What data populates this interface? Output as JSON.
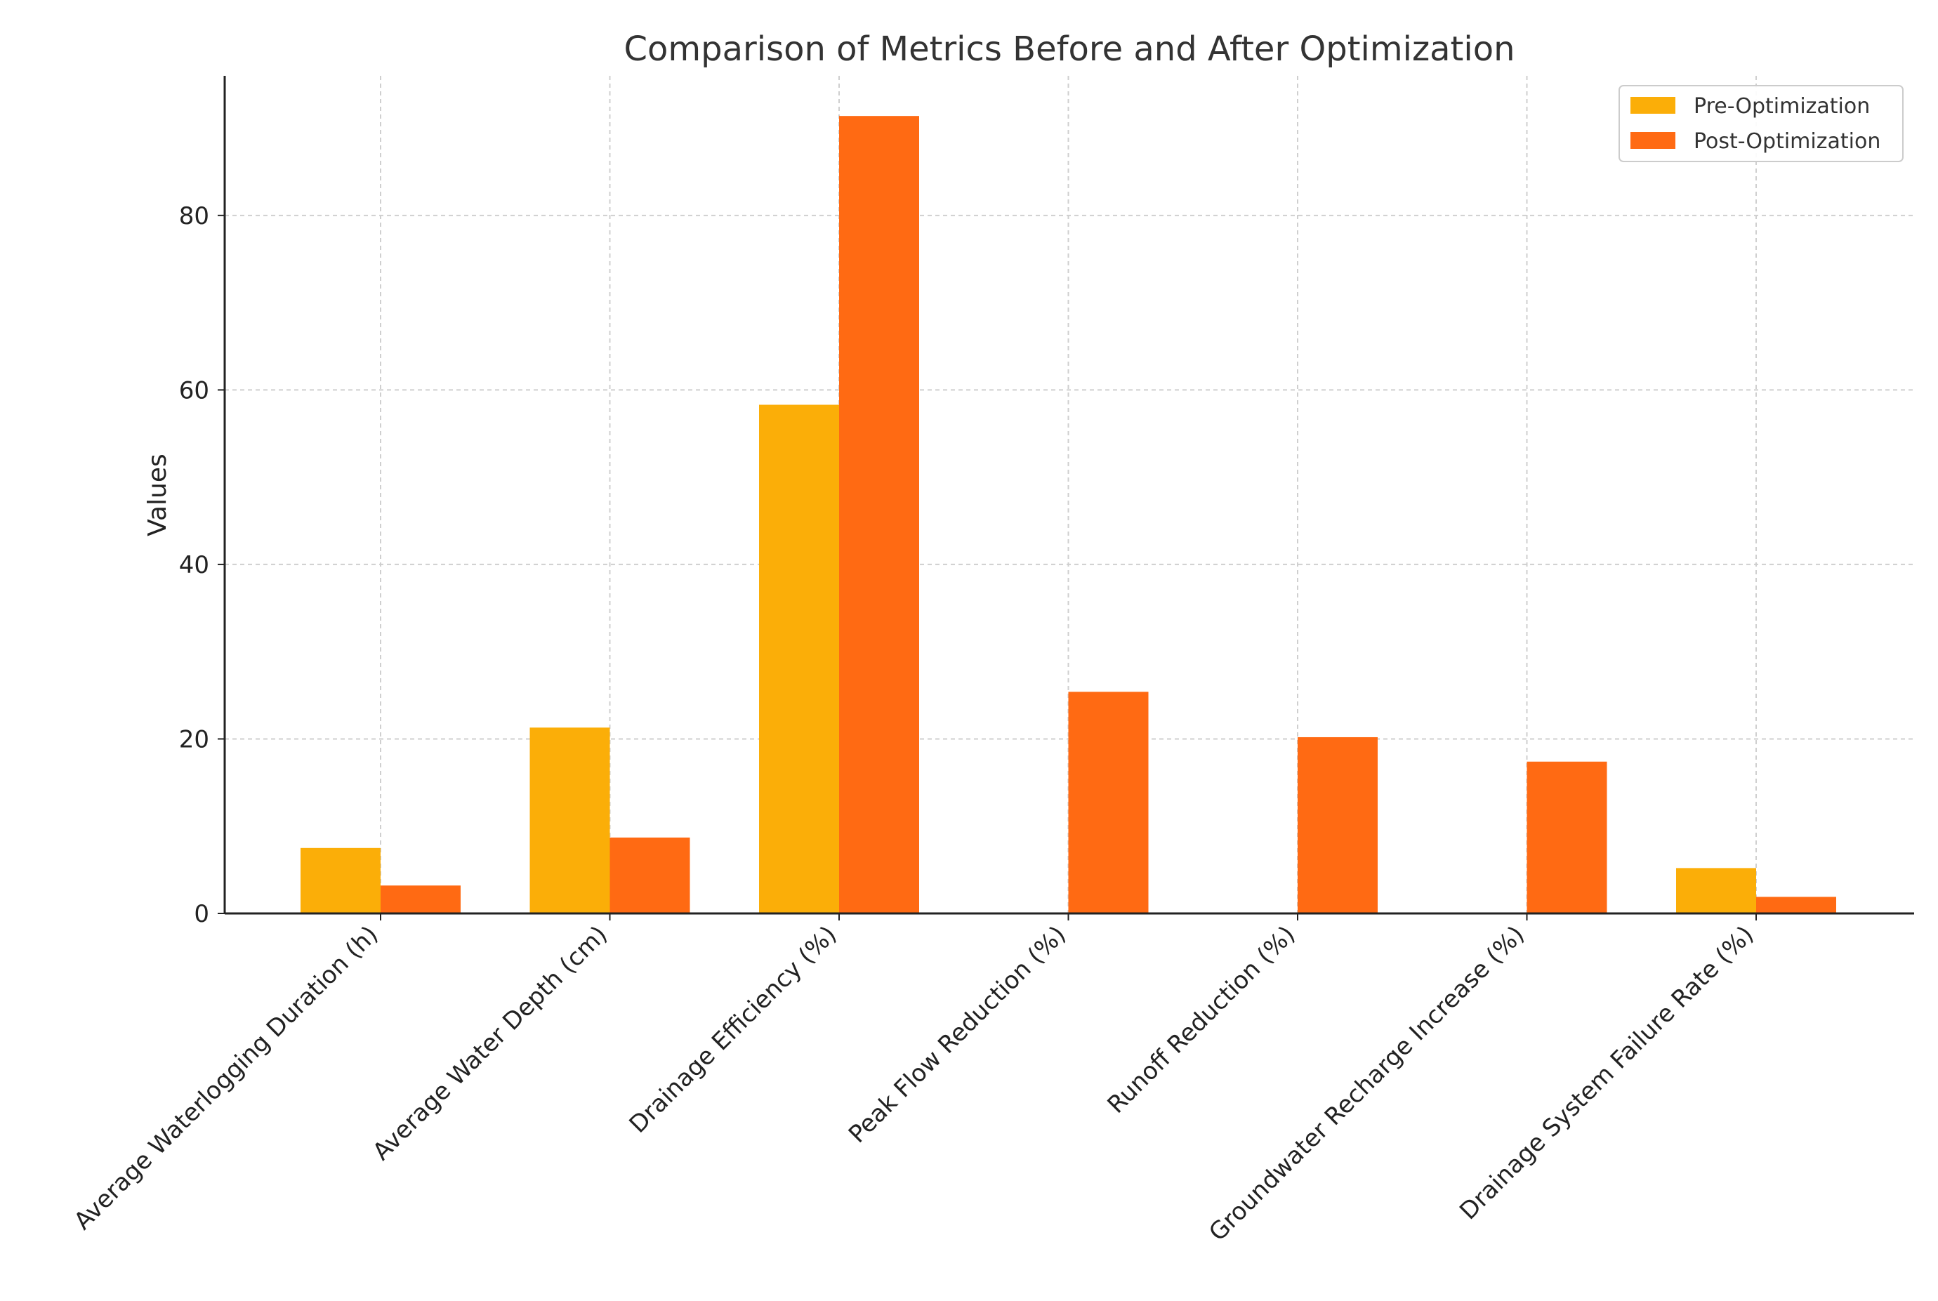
{
  "chart_data": {
    "type": "bar",
    "title": "Comparison of Metrics Before and After Optimization",
    "xlabel": "",
    "ylabel": "Values",
    "ylim": [
      0,
      96
    ],
    "yticks": [
      0,
      20,
      40,
      60,
      80
    ],
    "grid": true,
    "legend_position": "top-right",
    "categories": [
      "Average Waterlogging Duration (h)",
      "Average Water Depth (cm)",
      "Drainage Efficiency (%)",
      "Peak Flow Reduction (%)",
      "Runoff Reduction (%)",
      "Groundwater Recharge Increase (%)",
      "Drainage System Failure Rate (%)"
    ],
    "series": [
      {
        "name": "Pre-Optimization",
        "color": "#FBAE08",
        "values": [
          7.5,
          21.3,
          58.3,
          0,
          0,
          0,
          5.2
        ]
      },
      {
        "name": "Post-Optimization",
        "color": "#FF6A13",
        "values": [
          3.2,
          8.7,
          91.4,
          25.4,
          20.2,
          17.4,
          1.9
        ]
      }
    ]
  }
}
